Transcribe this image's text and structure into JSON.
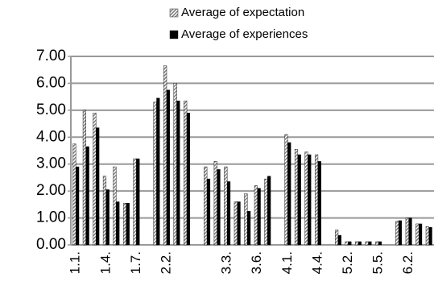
{
  "chart_data": {
    "type": "bar",
    "categories": [
      "1.1.",
      null,
      null,
      "1.4.",
      null,
      null,
      "1.7.",
      null,
      null,
      "2.2.",
      null,
      null,
      null,
      null,
      null,
      "3.3.",
      null,
      null,
      "3.6.",
      null,
      null,
      "4.1.",
      null,
      null,
      "4.4.",
      null,
      null,
      "5.2.",
      null,
      null,
      "5.5.",
      null,
      null,
      "6.2.",
      null,
      null
    ],
    "series": [
      {
        "name": "Average of expectation",
        "color": "#7f7f7f",
        "values": [
          3.75,
          5.0,
          4.9,
          2.55,
          2.9,
          1.55,
          3.2,
          null,
          5.3,
          6.65,
          6.0,
          5.35,
          null,
          2.9,
          3.1,
          2.9,
          1.6,
          1.9,
          2.2,
          2.45,
          null,
          4.1,
          3.55,
          3.45,
          3.35,
          null,
          0.55,
          0.12,
          0.12,
          0.12,
          0.12,
          null,
          0.88,
          1.0,
          0.78,
          0.68
        ]
      },
      {
        "name": "Average of experiences",
        "color": "#000000",
        "values": [
          2.9,
          3.65,
          4.35,
          2.05,
          1.6,
          1.55,
          3.2,
          null,
          5.45,
          5.75,
          5.35,
          4.9,
          null,
          2.45,
          2.8,
          2.35,
          1.6,
          1.25,
          2.1,
          2.55,
          null,
          3.8,
          3.35,
          3.35,
          3.1,
          null,
          0.35,
          0.12,
          0.12,
          0.12,
          0.12,
          null,
          0.9,
          1.0,
          0.78,
          0.65
        ]
      }
    ],
    "ylim": [
      0,
      7
    ],
    "yticks": [
      {
        "value": 0,
        "label": "0.00"
      },
      {
        "value": 1,
        "label": "1.00"
      },
      {
        "value": 2,
        "label": "2.00"
      },
      {
        "value": 3,
        "label": "3.00"
      },
      {
        "value": 4,
        "label": "4.00"
      },
      {
        "value": 5,
        "label": "5.00"
      },
      {
        "value": 6,
        "label": "6.00"
      },
      {
        "value": 7,
        "label": "7.00"
      }
    ],
    "grid": true,
    "legend": "top"
  }
}
